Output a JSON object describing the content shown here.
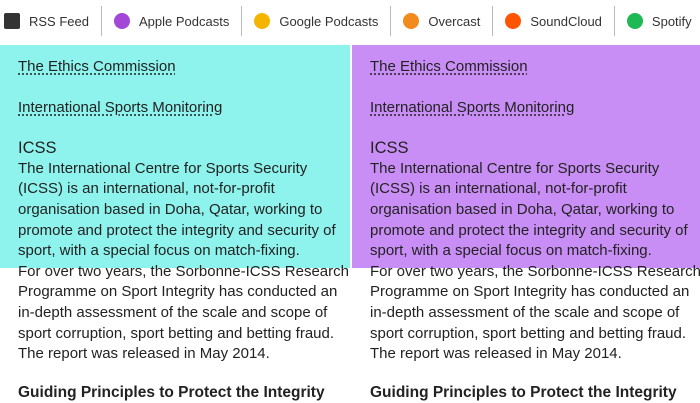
{
  "nav": [
    "RSS Feed",
    "Apple Podcasts",
    "Google Podcasts",
    "Overcast",
    "SoundCloud",
    "Spotify"
  ],
  "columns": [
    {
      "links": [
        "The Ethics Commission",
        "International Sports Monitoring"
      ],
      "heading": "ICSS",
      "paragraphs": [
        [
          "The International Centre for Sports Security",
          "(ICSS) is an international, not-for-profit",
          "organisation based in Doha, Qatar, working to",
          "promote and protect the integrity and security of",
          "sport, with a special focus on match-fixing."
        ],
        [
          "For over two years, the Sorbonne-ICSS Research",
          "Programme on Sport Integrity has conducted an",
          "in-depth assessment of the scale and scope of",
          "sport corruption, sport betting and betting fraud.",
          "The report was released in May 2014."
        ]
      ],
      "subheading": "Guiding Principles to Protect the Integrity"
    },
    {
      "links": [
        "The Ethics Commission",
        "International Sports Monitoring"
      ],
      "heading": "ICSS",
      "paragraphs": [
        [
          "The International Centre for Sports Security",
          "(ICSS) is an international, not-for-profit",
          "organisation based in Doha, Qatar, working to",
          "promote and protect the integrity and security of",
          "sport, with a special focus on match-fixing."
        ],
        [
          "For over two years, the Sorbonne-ICSS Research",
          "Programme on Sport Integrity has conducted an",
          "in-depth assessment of the scale and scope of",
          "sport corruption, sport betting and betting fraud.",
          "The report was released in May 2014."
        ]
      ],
      "subheading": "Guiding Principles to Protect the Integrity"
    }
  ]
}
